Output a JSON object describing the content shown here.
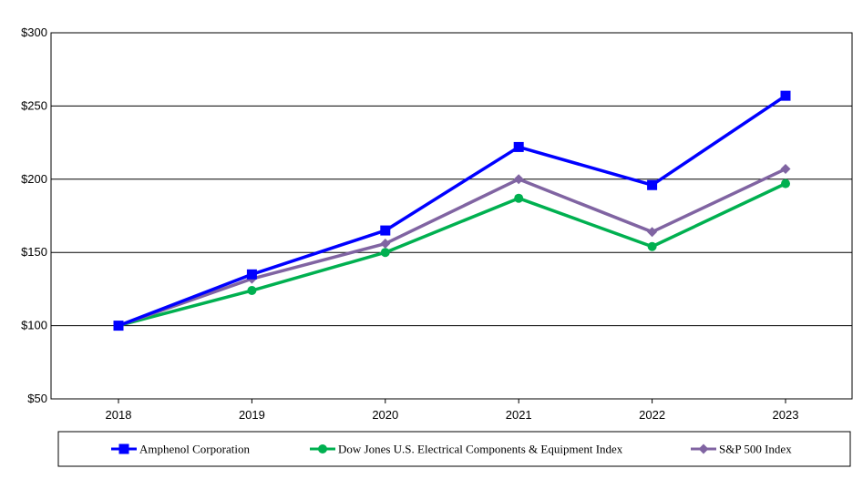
{
  "chart_data": {
    "type": "line",
    "title": "",
    "xlabel": "",
    "ylabel": "",
    "categories": [
      "2018",
      "2019",
      "2020",
      "2021",
      "2022",
      "2023"
    ],
    "ylim": [
      50,
      300
    ],
    "y_ticks": [
      50,
      100,
      150,
      200,
      250,
      300
    ],
    "y_tick_labels": [
      "$50",
      "$100",
      "$150",
      "$200",
      "$250",
      "$300"
    ],
    "grid": "horizontal",
    "legend_position": "bottom",
    "series": [
      {
        "name": "Amphenol Corporation",
        "values": [
          100,
          135,
          165,
          222,
          196,
          257
        ],
        "color": "#0000FF",
        "marker": "square"
      },
      {
        "name": "Dow Jones U.S. Electrical Components & Equipment Index",
        "values": [
          100,
          124,
          150,
          187,
          154,
          197
        ],
        "color": "#00B050",
        "marker": "circle"
      },
      {
        "name": "S&P 500 Index",
        "values": [
          100,
          132,
          156,
          200,
          164,
          207
        ],
        "color": "#8064A2",
        "marker": "diamond"
      }
    ]
  }
}
